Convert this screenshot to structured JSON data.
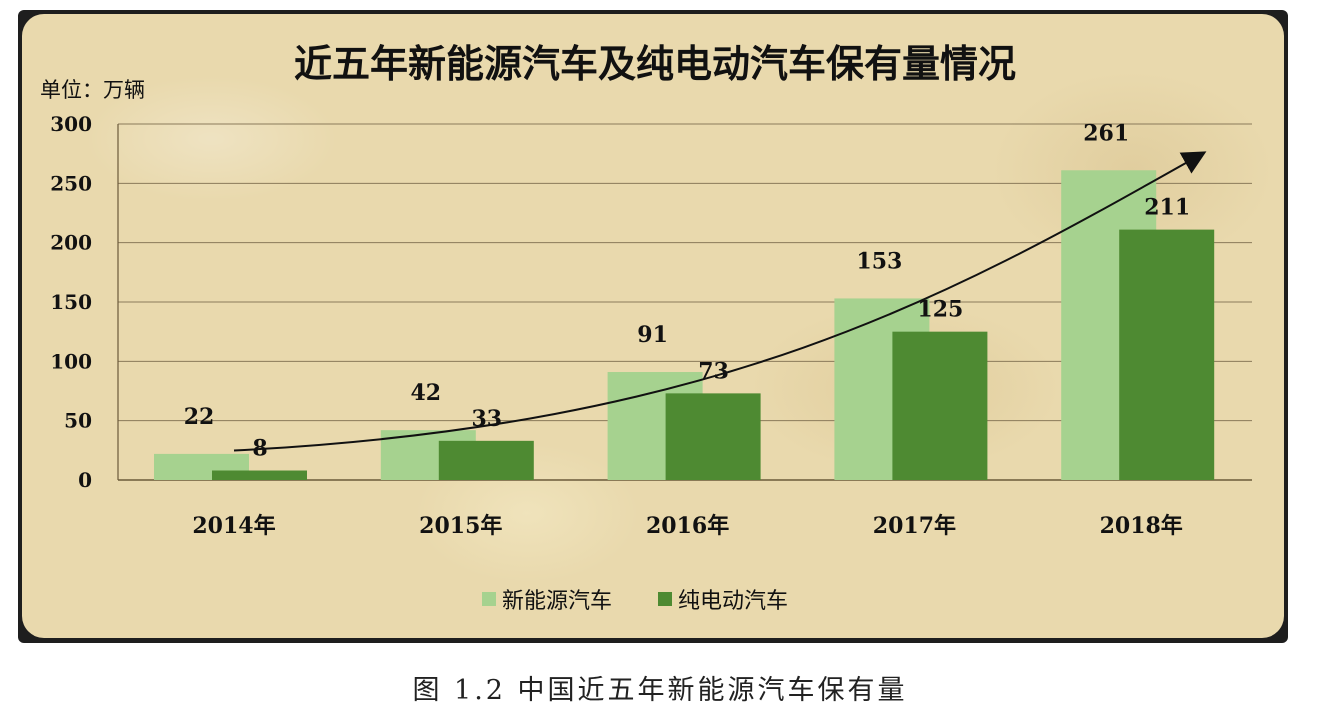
{
  "chart_data": {
    "type": "bar",
    "title": "近五年新能源汽车及纯电动汽车保有量情况",
    "unit_label": "单位：万辆",
    "categories": [
      "2014年",
      "2015年",
      "2016年",
      "2017年",
      "2018年"
    ],
    "series": [
      {
        "name": "新能源汽车",
        "values": [
          22,
          42,
          91,
          153,
          261
        ],
        "color": "#a6d28f"
      },
      {
        "name": "纯电动汽车",
        "values": [
          8,
          33,
          73,
          125,
          211
        ],
        "color": "#4e8a32"
      }
    ],
    "ylim": [
      0,
      300
    ],
    "yticks": [
      0,
      50,
      100,
      150,
      200,
      250,
      300
    ],
    "grid": true,
    "legend_position": "bottom",
    "annotation": "curved trend arrow rising from 2014 to 2018"
  },
  "caption": "图 1.2 中国近五年新能源汽车保有量"
}
